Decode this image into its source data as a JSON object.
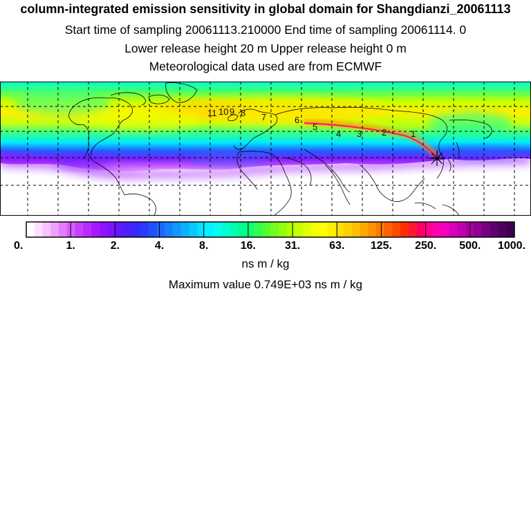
{
  "header": {
    "title": "column-integrated emission sensitivity in global domain for Shangdianzi_20061113",
    "line2": "Start time of sampling 20061113.210000      End time of sampling 20061114.      0",
    "line3": "Lower release height   20 m            Upper release height    0 m",
    "line4": "Meteorological data used are from ECMWF"
  },
  "map": {
    "receptor": "Shangdianzi",
    "trajectory_labels": [
      "11",
      "10",
      "9",
      "8",
      "7",
      "6",
      "5",
      "4",
      "3",
      "2",
      "1"
    ],
    "colors": {
      "land_outline": "#000000",
      "grid": "#000000",
      "no_data": "#ffffff",
      "trajectory": "#ff1a6e",
      "receptor_marker": "#000000"
    }
  },
  "colorbar": {
    "tick_labels": [
      "0.",
      "1.",
      "2.",
      "4.",
      "8.",
      "16.",
      "31.",
      "63.",
      "125.",
      "250.",
      "500.",
      "1000."
    ],
    "colors": [
      "#ffffff",
      "#fde0ff",
      "#f8c2ff",
      "#f0a0ff",
      "#e47cff",
      "#d65cff",
      "#c840ff",
      "#b82cff",
      "#a818ff",
      "#9412ff",
      "#7a14ff",
      "#6018ff",
      "#4a20ff",
      "#3828ff",
      "#2a3aff",
      "#2050ff",
      "#1a68ff",
      "#1480ff",
      "#1098ff",
      "#0cb0ff",
      "#08c8ff",
      "#04e0ff",
      "#00f4ff",
      "#00ffee",
      "#00ffd0",
      "#00ffb0",
      "#00ff90",
      "#10ff70",
      "#30ff50",
      "#50ff30",
      "#70ff20",
      "#90ff10",
      "#b0ff00",
      "#c8ff00",
      "#e0ff00",
      "#f4ff00",
      "#ffff00",
      "#fff000",
      "#ffe000",
      "#ffd000",
      "#ffc000",
      "#ffa800",
      "#ff9000",
      "#ff7800",
      "#ff6000",
      "#ff4800",
      "#ff3000",
      "#ff1830",
      "#ff0060",
      "#ff0090",
      "#ff00b0",
      "#f000c0",
      "#d800b8",
      "#c000b0",
      "#a800a0",
      "#900090",
      "#780080",
      "#600070",
      "#500060",
      "#400050"
    ],
    "units": "ns m / kg",
    "maximum": "Maximum value  0.749E+03 ns m / kg"
  }
}
